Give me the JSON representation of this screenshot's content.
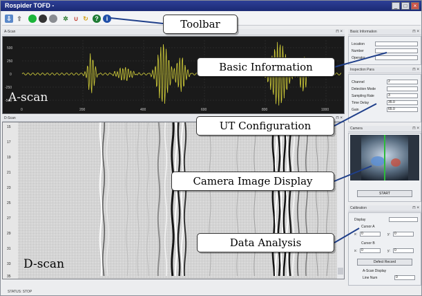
{
  "window": {
    "title": "Rospider TOFD -",
    "min": "_",
    "max": "□",
    "close": "×"
  },
  "panels": {
    "ascan_header": "A-Scan",
    "dscan_header": "D-Scan",
    "basic_header": "Basic Information",
    "inspection_header": "Inspection Para",
    "camera_header": "Camera",
    "calibration_header": "Calibration",
    "pin_close": "⊓ ×"
  },
  "ascan": {
    "label": "A-scan",
    "y_ticks": [
      "500",
      "250",
      "0",
      "-250",
      "-500"
    ],
    "x_ticks": [
      "0",
      "200",
      "400",
      "600",
      "800",
      "1000"
    ]
  },
  "dscan": {
    "label": "D-scan",
    "y_ticks": [
      "15",
      "17",
      "19",
      "21",
      "23",
      "25",
      "27",
      "29",
      "31",
      "33",
      "35"
    ]
  },
  "basic_info": {
    "location_label": "Location",
    "number_label": "Number",
    "operator_label": "Operator",
    "location_value": "",
    "number_value": "",
    "operator_value": ""
  },
  "inspection": {
    "channel_label": "Channel",
    "channel_value": "2",
    "detection_label": "Detection Mode",
    "detection_value": "",
    "sampling_label": "Sampling Rate",
    "sampling_value": "3",
    "delay_label": "Time Delay",
    "delay_value": "35.0",
    "gain_label": "Gain",
    "gain_value": "65.0"
  },
  "camera": {
    "start_label": "START"
  },
  "calibration": {
    "display_label": "Display",
    "display_value": "",
    "cursor_a_label": "Cursor A",
    "cursor_b_label": "Cursor B",
    "x_label": "x:",
    "y_label": "y:",
    "ax_value": "0",
    "ay_value": "0",
    "bx_value": "0",
    "by_value": "0",
    "defect_label": "Defect Record",
    "ascan_display_label": "A-Scan Display",
    "line_num_label": "Line Num",
    "line_num_value": "0"
  },
  "status": {
    "text": "STATUS:  STOP"
  },
  "callouts": {
    "toolbar": "Toolbar",
    "basic": "Basic Information",
    "ut": "UT Configuration",
    "camera": "Camera Image Display",
    "data": "Data Analysis"
  },
  "colors": {
    "title_bar": "#1f2f80",
    "ascan_trace": "#d6d23a",
    "callout_line": "#1f3f8a"
  }
}
